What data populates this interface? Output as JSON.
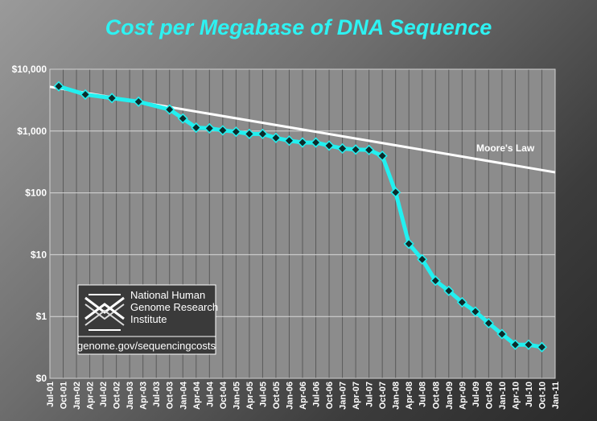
{
  "chart_data": {
    "type": "line",
    "title": "Cost per Megabase of DNA Sequence",
    "xlabel": "",
    "ylabel": "",
    "y_scale": "log",
    "y_tick_labels": [
      "$0",
      "$1",
      "$10",
      "$100",
      "$1,000",
      "$10,000"
    ],
    "y_tick_values": [
      0.1,
      1,
      10,
      100,
      1000,
      10000
    ],
    "ylim": [
      0.1,
      10000
    ],
    "x_tick_labels": [
      "Jul-01",
      "Oct-01",
      "Jan-02",
      "Apr-02",
      "Jul-02",
      "Oct-02",
      "Jan-03",
      "Apr-03",
      "Jul-03",
      "Oct-03",
      "Jan-04",
      "Apr-04",
      "Jul-04",
      "Oct-04",
      "Jan-05",
      "Apr-05",
      "Jul-05",
      "Oct-05",
      "Jan-06",
      "Apr-06",
      "Jul-06",
      "Oct-06",
      "Jan-07",
      "Apr-07",
      "Jul-07",
      "Oct-07",
      "Jan-08",
      "Apr-08",
      "Jul-08",
      "Oct-08",
      "Jan-09",
      "Apr-09",
      "Jul-09",
      "Oct-09",
      "Jan-10",
      "Apr-10",
      "Jul-10",
      "Oct-10",
      "Jan-11"
    ],
    "grid": true,
    "series": [
      {
        "name": "",
        "color": "#22f0f0",
        "marker_color": "#0b2b2b",
        "points": [
          {
            "x": "Sep-01",
            "y": 5292
          },
          {
            "x": "Mar-02",
            "y": 3898
          },
          {
            "x": "Sep-02",
            "y": 3413
          },
          {
            "x": "Mar-03",
            "y": 2986
          },
          {
            "x": "Oct-03",
            "y": 2230
          },
          {
            "x": "Jan-04",
            "y": 1598
          },
          {
            "x": "Apr-04",
            "y": 1135
          },
          {
            "x": "Jul-04",
            "y": 1107
          },
          {
            "x": "Oct-04",
            "y": 1028
          },
          {
            "x": "Jan-05",
            "y": 974
          },
          {
            "x": "Apr-05",
            "y": 899
          },
          {
            "x": "Jul-05",
            "y": 899
          },
          {
            "x": "Oct-05",
            "y": 775
          },
          {
            "x": "Jan-06",
            "y": 699
          },
          {
            "x": "Apr-06",
            "y": 652
          },
          {
            "x": "Jul-06",
            "y": 652
          },
          {
            "x": "Oct-06",
            "y": 581
          },
          {
            "x": "Jan-07",
            "y": 522
          },
          {
            "x": "Apr-07",
            "y": 502
          },
          {
            "x": "Jul-07",
            "y": 495
          },
          {
            "x": "Oct-07",
            "y": 397
          },
          {
            "x": "Jan-08",
            "y": 102
          },
          {
            "x": "Apr-08",
            "y": 15
          },
          {
            "x": "Jul-08",
            "y": 8.4
          },
          {
            "x": "Oct-08",
            "y": 3.8
          },
          {
            "x": "Jan-09",
            "y": 2.6
          },
          {
            "x": "Apr-09",
            "y": 1.7
          },
          {
            "x": "Jul-09",
            "y": 1.2
          },
          {
            "x": "Oct-09",
            "y": 0.78
          },
          {
            "x": "Jan-10",
            "y": 0.52
          },
          {
            "x": "Apr-10",
            "y": 0.35
          },
          {
            "x": "Jul-10",
            "y": 0.35
          },
          {
            "x": "Oct-10",
            "y": 0.32
          }
        ]
      },
      {
        "name": "Moore's Law",
        "color": "#ffffff",
        "points": [
          {
            "x": "Jul-01",
            "y": 5200
          },
          {
            "x": "Jan-11",
            "y": 215
          }
        ]
      }
    ],
    "annotations": [
      "Moore's Law"
    ]
  },
  "logo": {
    "line1": "National Human",
    "line2": "Genome Research",
    "line3": "Institute",
    "url": "genome.gov/sequencingcosts"
  }
}
